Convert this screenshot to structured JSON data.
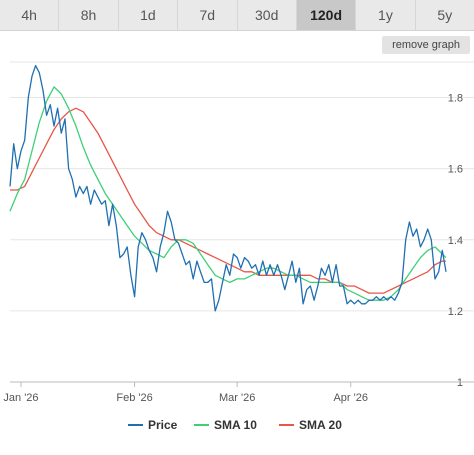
{
  "range_tabs": [
    {
      "label": "4h",
      "active": false
    },
    {
      "label": "8h",
      "active": false
    },
    {
      "label": "1d",
      "active": false
    },
    {
      "label": "7d",
      "active": false
    },
    {
      "label": "30d",
      "active": false
    },
    {
      "label": "120d",
      "active": true
    },
    {
      "label": "1y",
      "active": false
    },
    {
      "label": "5y",
      "active": false
    }
  ],
  "remove_graph_label": "remove graph",
  "chart_data": {
    "type": "line",
    "title": "",
    "xlabel": "",
    "ylabel": "",
    "ylim": [
      1,
      1.9
    ],
    "yticks": [
      "1",
      "1.2",
      "1.4",
      "1.6",
      "1.8"
    ],
    "x_labels": [
      "Jan '26",
      "Feb '26",
      "Mar '26",
      "Apr '26"
    ],
    "x_label_positions": [
      "2026-01-01",
      "2026-02-01",
      "2026-03-01",
      "2026-04-01"
    ],
    "x_range": [
      "2025-12-29",
      "2026-04-27"
    ],
    "legend_position": "bottom",
    "series": [
      {
        "name": "Price",
        "color": "#1f6fb2",
        "points": [
          [
            "2025-12-29",
            1.55
          ],
          [
            "2025-12-30",
            1.67
          ],
          [
            "2025-12-31",
            1.6
          ],
          [
            "2026-01-01",
            1.65
          ],
          [
            "2026-01-02",
            1.68
          ],
          [
            "2026-01-03",
            1.8
          ],
          [
            "2026-01-04",
            1.86
          ],
          [
            "2026-01-05",
            1.89
          ],
          [
            "2026-01-06",
            1.87
          ],
          [
            "2026-01-07",
            1.82
          ],
          [
            "2026-01-08",
            1.75
          ],
          [
            "2026-01-09",
            1.78
          ],
          [
            "2026-01-10",
            1.72
          ],
          [
            "2026-01-11",
            1.77
          ],
          [
            "2026-01-12",
            1.7
          ],
          [
            "2026-01-13",
            1.74
          ],
          [
            "2026-01-14",
            1.6
          ],
          [
            "2026-01-15",
            1.57
          ],
          [
            "2026-01-16",
            1.52
          ],
          [
            "2026-01-17",
            1.55
          ],
          [
            "2026-01-18",
            1.53
          ],
          [
            "2026-01-19",
            1.55
          ],
          [
            "2026-01-20",
            1.5
          ],
          [
            "2026-01-21",
            1.54
          ],
          [
            "2026-01-22",
            1.52
          ],
          [
            "2026-01-23",
            1.5
          ],
          [
            "2026-01-24",
            1.51
          ],
          [
            "2026-01-25",
            1.44
          ],
          [
            "2026-01-26",
            1.5
          ],
          [
            "2026-01-27",
            1.44
          ],
          [
            "2026-01-28",
            1.35
          ],
          [
            "2026-01-29",
            1.36
          ],
          [
            "2026-01-30",
            1.38
          ],
          [
            "2026-01-31",
            1.3
          ],
          [
            "2026-02-01",
            1.24
          ],
          [
            "2026-02-02",
            1.38
          ],
          [
            "2026-02-03",
            1.42
          ],
          [
            "2026-02-04",
            1.4
          ],
          [
            "2026-02-05",
            1.37
          ],
          [
            "2026-02-06",
            1.35
          ],
          [
            "2026-02-07",
            1.31
          ],
          [
            "2026-02-08",
            1.38
          ],
          [
            "2026-02-09",
            1.42
          ],
          [
            "2026-02-10",
            1.48
          ],
          [
            "2026-02-11",
            1.45
          ],
          [
            "2026-02-12",
            1.4
          ],
          [
            "2026-02-13",
            1.39
          ],
          [
            "2026-02-14",
            1.36
          ],
          [
            "2026-02-15",
            1.33
          ],
          [
            "2026-02-16",
            1.34
          ],
          [
            "2026-02-17",
            1.29
          ],
          [
            "2026-02-18",
            1.34
          ],
          [
            "2026-02-19",
            1.31
          ],
          [
            "2026-02-20",
            1.28
          ],
          [
            "2026-02-21",
            1.28
          ],
          [
            "2026-02-22",
            1.29
          ],
          [
            "2026-02-23",
            1.2
          ],
          [
            "2026-02-24",
            1.23
          ],
          [
            "2026-02-25",
            1.28
          ],
          [
            "2026-02-26",
            1.33
          ],
          [
            "2026-02-27",
            1.3
          ],
          [
            "2026-02-28",
            1.36
          ],
          [
            "2026-03-01",
            1.35
          ],
          [
            "2026-03-02",
            1.32
          ],
          [
            "2026-03-03",
            1.35
          ],
          [
            "2026-03-04",
            1.34
          ],
          [
            "2026-03-05",
            1.32
          ],
          [
            "2026-03-06",
            1.33
          ],
          [
            "2026-03-07",
            1.3
          ],
          [
            "2026-03-08",
            1.34
          ],
          [
            "2026-03-09",
            1.3
          ],
          [
            "2026-03-10",
            1.33
          ],
          [
            "2026-03-11",
            1.3
          ],
          [
            "2026-03-12",
            1.33
          ],
          [
            "2026-03-13",
            1.3
          ],
          [
            "2026-03-14",
            1.26
          ],
          [
            "2026-03-15",
            1.3
          ],
          [
            "2026-03-16",
            1.34
          ],
          [
            "2026-03-17",
            1.28
          ],
          [
            "2026-03-18",
            1.32
          ],
          [
            "2026-03-19",
            1.22
          ],
          [
            "2026-03-20",
            1.26
          ],
          [
            "2026-03-21",
            1.27
          ],
          [
            "2026-03-22",
            1.23
          ],
          [
            "2026-03-23",
            1.27
          ],
          [
            "2026-03-24",
            1.32
          ],
          [
            "2026-03-25",
            1.3
          ],
          [
            "2026-03-26",
            1.33
          ],
          [
            "2026-03-27",
            1.28
          ],
          [
            "2026-03-28",
            1.33
          ],
          [
            "2026-03-29",
            1.27
          ],
          [
            "2026-03-30",
            1.27
          ],
          [
            "2026-03-31",
            1.22
          ],
          [
            "2026-04-01",
            1.23
          ],
          [
            "2026-04-02",
            1.22
          ],
          [
            "2026-04-03",
            1.23
          ],
          [
            "2026-04-04",
            1.22
          ],
          [
            "2026-04-05",
            1.22
          ],
          [
            "2026-04-06",
            1.23
          ],
          [
            "2026-04-07",
            1.23
          ],
          [
            "2026-04-08",
            1.24
          ],
          [
            "2026-04-09",
            1.23
          ],
          [
            "2026-04-10",
            1.24
          ],
          [
            "2026-04-11",
            1.23
          ],
          [
            "2026-04-12",
            1.24
          ],
          [
            "2026-04-13",
            1.23
          ],
          [
            "2026-04-14",
            1.25
          ],
          [
            "2026-04-15",
            1.28
          ],
          [
            "2026-04-16",
            1.4
          ],
          [
            "2026-04-17",
            1.45
          ],
          [
            "2026-04-18",
            1.41
          ],
          [
            "2026-04-19",
            1.43
          ],
          [
            "2026-04-20",
            1.38
          ],
          [
            "2026-04-21",
            1.4
          ],
          [
            "2026-04-22",
            1.43
          ],
          [
            "2026-04-23",
            1.4
          ],
          [
            "2026-04-24",
            1.29
          ],
          [
            "2026-04-25",
            1.31
          ],
          [
            "2026-04-26",
            1.37
          ],
          [
            "2026-04-27",
            1.31
          ]
        ]
      },
      {
        "name": "SMA 10",
        "color": "#3fcf77",
        "points": [
          [
            "2025-12-29",
            1.48
          ],
          [
            "2025-12-31",
            1.53
          ],
          [
            "2026-01-02",
            1.57
          ],
          [
            "2026-01-04",
            1.65
          ],
          [
            "2026-01-06",
            1.73
          ],
          [
            "2026-01-08",
            1.79
          ],
          [
            "2026-01-10",
            1.83
          ],
          [
            "2026-01-12",
            1.81
          ],
          [
            "2026-01-14",
            1.77
          ],
          [
            "2026-01-16",
            1.72
          ],
          [
            "2026-01-18",
            1.66
          ],
          [
            "2026-01-20",
            1.61
          ],
          [
            "2026-01-22",
            1.57
          ],
          [
            "2026-01-24",
            1.53
          ],
          [
            "2026-01-26",
            1.5
          ],
          [
            "2026-01-28",
            1.47
          ],
          [
            "2026-01-30",
            1.44
          ],
          [
            "2026-02-01",
            1.41
          ],
          [
            "2026-02-03",
            1.39
          ],
          [
            "2026-02-05",
            1.37
          ],
          [
            "2026-02-07",
            1.36
          ],
          [
            "2026-02-09",
            1.35
          ],
          [
            "2026-02-11",
            1.38
          ],
          [
            "2026-02-13",
            1.4
          ],
          [
            "2026-02-15",
            1.4
          ],
          [
            "2026-02-17",
            1.39
          ],
          [
            "2026-02-19",
            1.36
          ],
          [
            "2026-02-21",
            1.33
          ],
          [
            "2026-02-23",
            1.3
          ],
          [
            "2026-02-25",
            1.29
          ],
          [
            "2026-02-27",
            1.28
          ],
          [
            "2026-03-01",
            1.29
          ],
          [
            "2026-03-03",
            1.29
          ],
          [
            "2026-03-05",
            1.3
          ],
          [
            "2026-03-07",
            1.31
          ],
          [
            "2026-03-09",
            1.32
          ],
          [
            "2026-03-11",
            1.32
          ],
          [
            "2026-03-13",
            1.31
          ],
          [
            "2026-03-15",
            1.3
          ],
          [
            "2026-03-17",
            1.3
          ],
          [
            "2026-03-19",
            1.29
          ],
          [
            "2026-03-21",
            1.28
          ],
          [
            "2026-03-23",
            1.28
          ],
          [
            "2026-03-25",
            1.28
          ],
          [
            "2026-03-27",
            1.28
          ],
          [
            "2026-03-29",
            1.28
          ],
          [
            "2026-03-31",
            1.26
          ],
          [
            "2026-04-02",
            1.25
          ],
          [
            "2026-04-04",
            1.24
          ],
          [
            "2026-04-06",
            1.23
          ],
          [
            "2026-04-08",
            1.23
          ],
          [
            "2026-04-10",
            1.23
          ],
          [
            "2026-04-12",
            1.24
          ],
          [
            "2026-04-14",
            1.26
          ],
          [
            "2026-04-16",
            1.29
          ],
          [
            "2026-04-18",
            1.32
          ],
          [
            "2026-04-20",
            1.35
          ],
          [
            "2026-04-22",
            1.37
          ],
          [
            "2026-04-24",
            1.38
          ],
          [
            "2026-04-26",
            1.36
          ],
          [
            "2026-04-27",
            1.35
          ]
        ]
      },
      {
        "name": "SMA 20",
        "color": "#e8564a",
        "points": [
          [
            "2025-12-29",
            1.54
          ],
          [
            "2025-12-31",
            1.54
          ],
          [
            "2026-01-02",
            1.55
          ],
          [
            "2026-01-04",
            1.59
          ],
          [
            "2026-01-06",
            1.63
          ],
          [
            "2026-01-08",
            1.67
          ],
          [
            "2026-01-10",
            1.71
          ],
          [
            "2026-01-12",
            1.74
          ],
          [
            "2026-01-14",
            1.76
          ],
          [
            "2026-01-16",
            1.77
          ],
          [
            "2026-01-18",
            1.76
          ],
          [
            "2026-01-20",
            1.73
          ],
          [
            "2026-01-22",
            1.7
          ],
          [
            "2026-01-24",
            1.66
          ],
          [
            "2026-01-26",
            1.62
          ],
          [
            "2026-01-28",
            1.58
          ],
          [
            "2026-01-30",
            1.54
          ],
          [
            "2026-02-01",
            1.5
          ],
          [
            "2026-02-03",
            1.47
          ],
          [
            "2026-02-05",
            1.44
          ],
          [
            "2026-02-07",
            1.42
          ],
          [
            "2026-02-09",
            1.41
          ],
          [
            "2026-02-11",
            1.4
          ],
          [
            "2026-02-13",
            1.4
          ],
          [
            "2026-02-15",
            1.39
          ],
          [
            "2026-02-17",
            1.38
          ],
          [
            "2026-02-19",
            1.37
          ],
          [
            "2026-02-21",
            1.36
          ],
          [
            "2026-02-23",
            1.35
          ],
          [
            "2026-02-25",
            1.34
          ],
          [
            "2026-02-27",
            1.33
          ],
          [
            "2026-03-01",
            1.32
          ],
          [
            "2026-03-03",
            1.31
          ],
          [
            "2026-03-05",
            1.31
          ],
          [
            "2026-03-07",
            1.3
          ],
          [
            "2026-03-09",
            1.3
          ],
          [
            "2026-03-11",
            1.3
          ],
          [
            "2026-03-13",
            1.3
          ],
          [
            "2026-03-15",
            1.3
          ],
          [
            "2026-03-17",
            1.3
          ],
          [
            "2026-03-19",
            1.3
          ],
          [
            "2026-03-21",
            1.3
          ],
          [
            "2026-03-23",
            1.29
          ],
          [
            "2026-03-25",
            1.29
          ],
          [
            "2026-03-27",
            1.28
          ],
          [
            "2026-03-29",
            1.28
          ],
          [
            "2026-03-31",
            1.27
          ],
          [
            "2026-04-02",
            1.27
          ],
          [
            "2026-04-04",
            1.26
          ],
          [
            "2026-04-06",
            1.25
          ],
          [
            "2026-04-08",
            1.25
          ],
          [
            "2026-04-10",
            1.25
          ],
          [
            "2026-04-12",
            1.26
          ],
          [
            "2026-04-14",
            1.27
          ],
          [
            "2026-04-16",
            1.28
          ],
          [
            "2026-04-18",
            1.29
          ],
          [
            "2026-04-20",
            1.3
          ],
          [
            "2026-04-22",
            1.31
          ],
          [
            "2026-04-24",
            1.33
          ],
          [
            "2026-04-26",
            1.34
          ],
          [
            "2026-04-27",
            1.34
          ]
        ]
      }
    ]
  }
}
